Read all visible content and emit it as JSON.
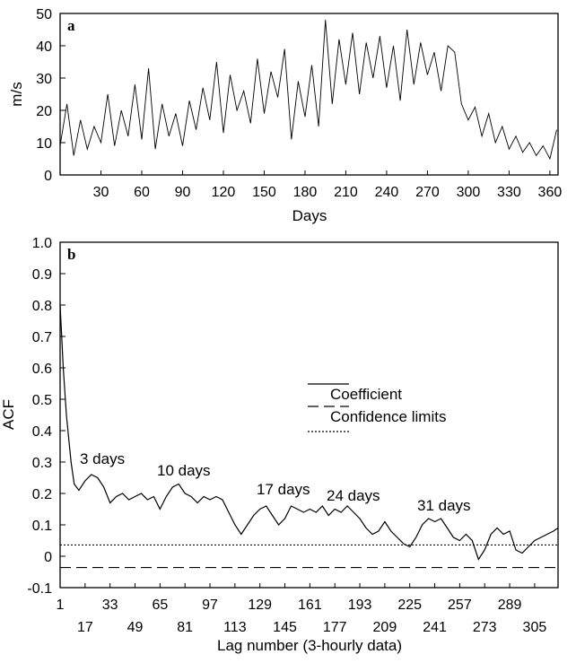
{
  "chart_data": [
    {
      "panel": "a",
      "type": "line",
      "xlabel": "Days",
      "ylabel": "m/s",
      "xlim": [
        0,
        366
      ],
      "ylim": [
        0,
        50
      ],
      "x_ticks": [
        "30",
        "60",
        "90",
        "120",
        "150",
        "180",
        "210",
        "240",
        "270",
        "300",
        "330",
        "360"
      ],
      "y_ticks": [
        "0",
        "10",
        "20",
        "30",
        "40",
        "50"
      ],
      "series": [
        {
          "x": [
            0,
            5,
            10,
            15,
            20,
            25,
            30,
            35,
            40,
            45,
            50,
            55,
            60,
            65,
            70,
            75,
            80,
            85,
            90,
            95,
            100,
            105,
            110,
            115,
            120,
            125,
            130,
            135,
            140,
            145,
            150,
            155,
            160,
            165,
            170,
            175,
            180,
            185,
            190,
            195,
            200,
            205,
            210,
            215,
            220,
            225,
            230,
            235,
            240,
            245,
            250,
            255,
            260,
            265,
            270,
            275,
            280,
            285,
            290,
            295,
            300,
            305,
            310,
            315,
            320,
            325,
            330,
            335,
            340,
            345,
            350,
            355,
            360,
            365
          ],
          "values": [
            9,
            22,
            6,
            17,
            8,
            15,
            10,
            25,
            9,
            20,
            12,
            28,
            11,
            33,
            8,
            22,
            12,
            19,
            9,
            23,
            14,
            27,
            17,
            35,
            13,
            31,
            20,
            26,
            16,
            36,
            19,
            32,
            24,
            39,
            11,
            29,
            18,
            34,
            15,
            48,
            22,
            42,
            28,
            44,
            25,
            41,
            30,
            43,
            27,
            40,
            23,
            45,
            28,
            41,
            31,
            38,
            26,
            40,
            38,
            22,
            17,
            21,
            12,
            19,
            10,
            15,
            8,
            12,
            7,
            10,
            6,
            9,
            5,
            14
          ]
        }
      ]
    },
    {
      "panel": "b",
      "type": "line",
      "xlabel": "Lag number (3-hourly data)",
      "ylabel": "ACF",
      "xlim": [
        1,
        320
      ],
      "ylim": [
        -0.1,
        1.0
      ],
      "x_ticks_row1": [
        "1",
        "33",
        "65",
        "97",
        "129",
        "161",
        "193",
        "225",
        "257",
        "289"
      ],
      "x_ticks_row2": [
        "17",
        "49",
        "81",
        "113",
        "145",
        "177",
        "209",
        "241",
        "273",
        "305"
      ],
      "y_ticks": [
        "-0.1",
        "0",
        "0.1",
        "0.2",
        "0.3",
        "0.4",
        "0.5",
        "0.6",
        "0.7",
        "0.8",
        "0.9",
        "1.0"
      ],
      "legend": [
        "Coefficient",
        "Confidence limits"
      ],
      "annotations": [
        "3 days",
        "10 days",
        "17 days",
        "24 days",
        "31 days"
      ],
      "series": [
        {
          "name": "Coefficient",
          "x": [
            1,
            3,
            5,
            8,
            10,
            13,
            17,
            21,
            25,
            29,
            33,
            37,
            41,
            45,
            49,
            53,
            57,
            61,
            65,
            69,
            73,
            77,
            81,
            85,
            89,
            93,
            97,
            101,
            105,
            109,
            113,
            117,
            121,
            125,
            129,
            133,
            137,
            141,
            145,
            149,
            153,
            157,
            161,
            165,
            169,
            173,
            177,
            181,
            185,
            189,
            193,
            197,
            201,
            205,
            209,
            213,
            217,
            221,
            225,
            229,
            233,
            237,
            241,
            245,
            249,
            253,
            257,
            261,
            265,
            269,
            273,
            277,
            281,
            285,
            289,
            293,
            297,
            301,
            305,
            309,
            313,
            317,
            320
          ],
          "values": [
            0.8,
            0.6,
            0.45,
            0.3,
            0.23,
            0.21,
            0.24,
            0.26,
            0.25,
            0.22,
            0.17,
            0.19,
            0.2,
            0.18,
            0.19,
            0.2,
            0.18,
            0.19,
            0.15,
            0.19,
            0.22,
            0.23,
            0.2,
            0.19,
            0.17,
            0.19,
            0.18,
            0.19,
            0.18,
            0.14,
            0.1,
            0.07,
            0.1,
            0.13,
            0.15,
            0.16,
            0.13,
            0.1,
            0.12,
            0.16,
            0.15,
            0.14,
            0.15,
            0.14,
            0.16,
            0.13,
            0.15,
            0.14,
            0.16,
            0.14,
            0.12,
            0.09,
            0.07,
            0.08,
            0.11,
            0.08,
            0.06,
            0.04,
            0.03,
            0.06,
            0.1,
            0.12,
            0.11,
            0.12,
            0.09,
            0.06,
            0.05,
            0.07,
            0.05,
            -0.01,
            0.02,
            0.07,
            0.09,
            0.07,
            0.08,
            0.02,
            0.01,
            0.03,
            0.05,
            0.06,
            0.07,
            0.08,
            0.09
          ]
        },
        {
          "name": "Confidence limits (upper)",
          "x": [
            1,
            320
          ],
          "values": [
            0.036,
            0.036
          ]
        },
        {
          "name": "Confidence limits (lower)",
          "x": [
            1,
            320
          ],
          "values": [
            -0.036,
            -0.036
          ]
        }
      ]
    }
  ]
}
